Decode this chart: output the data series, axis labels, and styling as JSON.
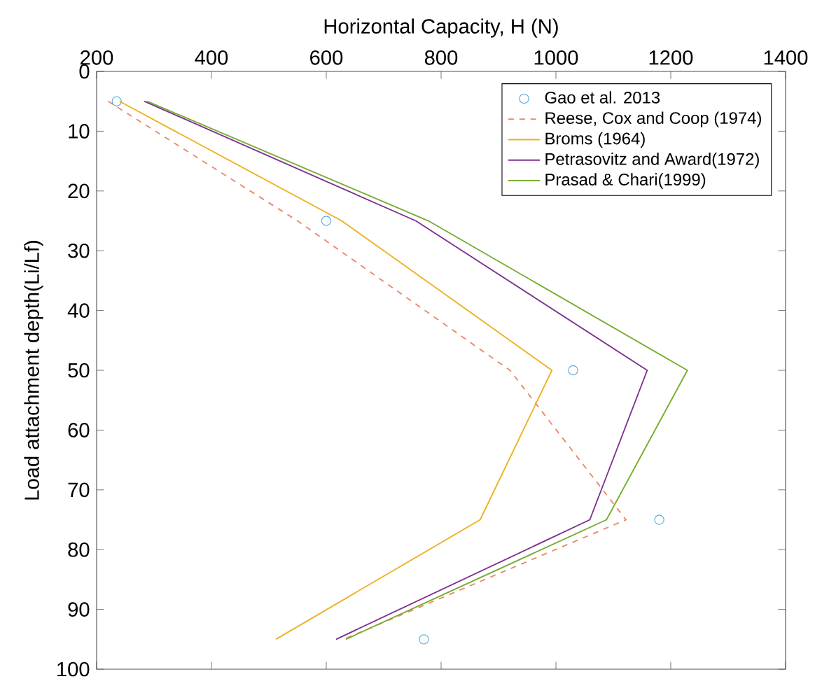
{
  "chart_data": {
    "type": "line",
    "xlabel": "Horizontal Capacity, H (N)",
    "ylabel": "Load attachment depth(Li/Lf)",
    "xlim": [
      200,
      1400
    ],
    "xticks": [
      200,
      400,
      600,
      800,
      1000,
      1200,
      1400
    ],
    "ylim": [
      100,
      0
    ],
    "yticks": [
      0,
      10,
      20,
      30,
      40,
      50,
      60,
      70,
      80,
      90,
      100
    ],
    "grid": false,
    "legend": "top right",
    "series": [
      {
        "name": "Gao et al. 2013",
        "type": "scatter",
        "marker": "circle",
        "color": "#4da6df",
        "x": [
          235,
          600,
          1030,
          1180,
          770
        ],
        "values": [
          5,
          25,
          50,
          75,
          95
        ]
      },
      {
        "name": "Reese, Cox and Coop (1974)",
        "line_style": "dashed",
        "color": "#e8896a",
        "x": [
          220,
          550,
          920,
          1122,
          630
        ],
        "values": [
          5,
          25,
          50,
          75,
          95
        ]
      },
      {
        "name": "Broms (1964)",
        "line_style": "solid",
        "color": "#edb120",
        "x": [
          240,
          627,
          993,
          868,
          512
        ],
        "values": [
          5,
          25,
          50,
          75,
          95
        ]
      },
      {
        "name": "Petrasovitz and Award(1972)",
        "line_style": "solid",
        "color": "#7e2f8e",
        "x": [
          283,
          756,
          1159,
          1059,
          617
        ],
        "values": [
          5,
          25,
          50,
          75,
          95
        ]
      },
      {
        "name": "Prasad & Chari(1999)",
        "line_style": "solid",
        "color": "#77ac30",
        "x": [
          288,
          778,
          1229,
          1088,
          634
        ],
        "values": [
          5,
          25,
          50,
          75,
          95
        ]
      }
    ]
  }
}
